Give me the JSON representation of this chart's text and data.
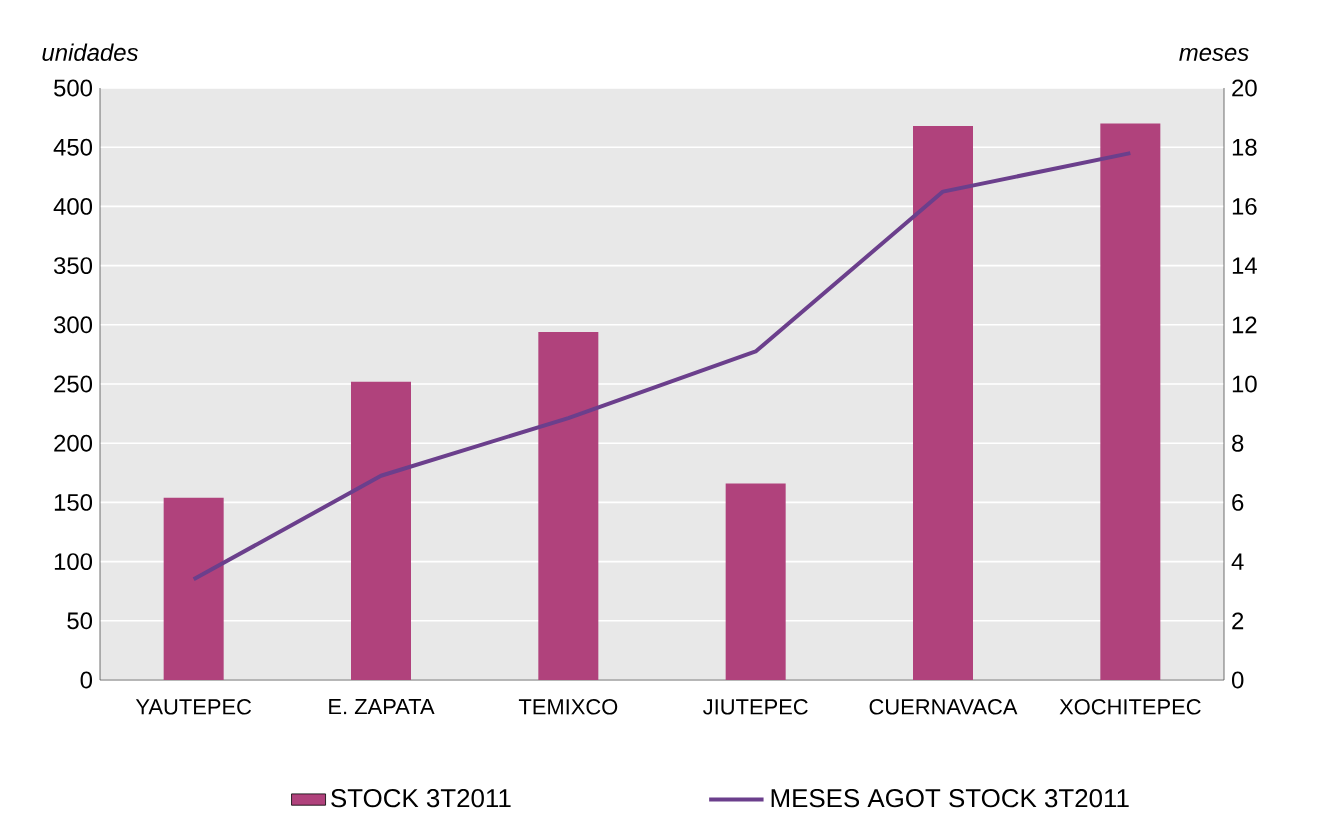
{
  "chart_data": {
    "type": "bar",
    "ylabel": "unidades",
    "y2label": "meses",
    "categories": [
      "YAUTEPEC",
      "E. ZAPATA",
      "TEMIXCO",
      "JIUTEPEC",
      "CUERNAVACA",
      "XOCHITEPEC"
    ],
    "series": [
      {
        "name": "STOCK 3T2011",
        "color": "#b0427c",
        "values": [
          154,
          252,
          294,
          166,
          468,
          470
        ]
      },
      {
        "name": "MESES AGOT STOCK 3T2011",
        "type": "line",
        "axis": "y2",
        "color": "#6b3f8c",
        "values": [
          3.4,
          6.9,
          8.85,
          11.1,
          16.5,
          17.8
        ]
      }
    ],
    "ylim": [
      0,
      500
    ],
    "yticks": [
      0,
      50,
      100,
      150,
      200,
      250,
      300,
      350,
      400,
      450,
      500
    ],
    "y2lim": [
      0,
      20
    ],
    "y2ticks": [
      0,
      2,
      4,
      6,
      8,
      10,
      12,
      14,
      16,
      18,
      20
    ],
    "grid": "y",
    "legend": "bottom",
    "marker": "none",
    "line_style": "solid"
  }
}
